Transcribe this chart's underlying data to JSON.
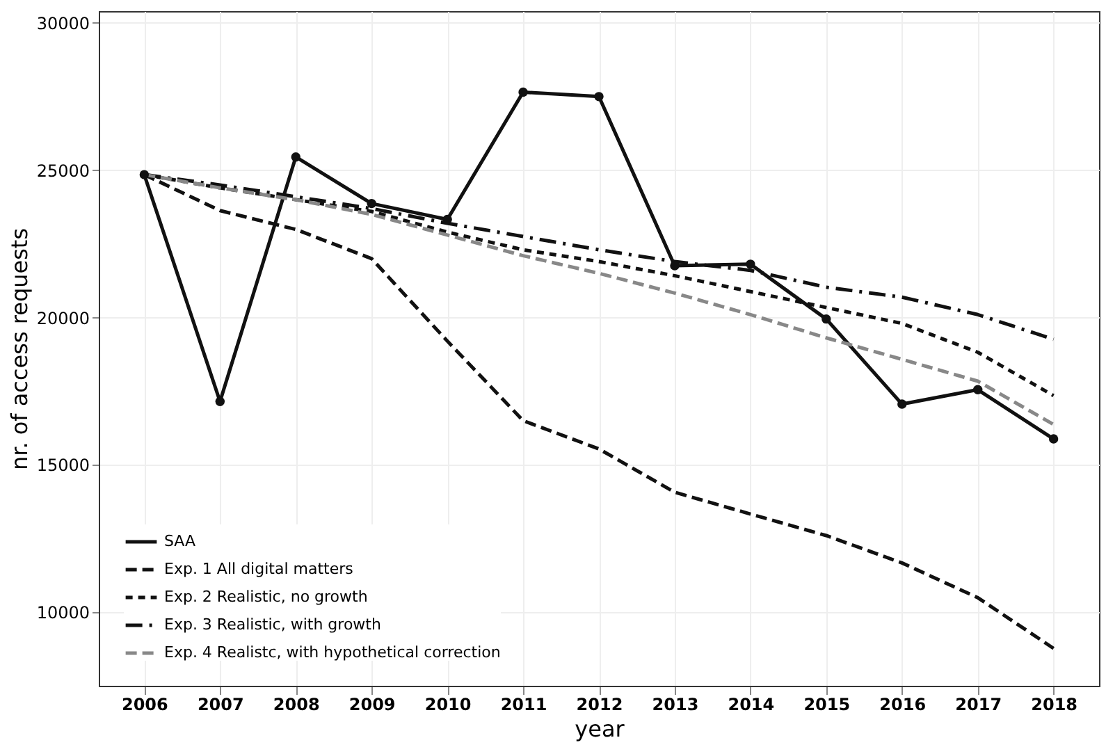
{
  "chart_data": {
    "type": "line",
    "xlabel": "year",
    "ylabel": "nr. of access requests",
    "x": [
      2006,
      2007,
      2008,
      2009,
      2010,
      2011,
      2012,
      2013,
      2014,
      2015,
      2016,
      2017,
      2018
    ],
    "xlim": [
      2005.4,
      2018.6
    ],
    "xticks": [
      2006,
      2007,
      2008,
      2009,
      2010,
      2011,
      2012,
      2013,
      2014,
      2015,
      2016,
      2017,
      2018
    ],
    "ylim": [
      7500,
      30400
    ],
    "yticks": [
      10000,
      15000,
      20000,
      25000,
      30000
    ],
    "grid": true,
    "legend": "bottom left",
    "series": [
      {
        "name": "SAA",
        "color": "#111111",
        "marker": "circle",
        "line_style": "solid",
        "values": [
          24850,
          17150,
          25450,
          23870,
          23330,
          27650,
          27500,
          21760,
          21810,
          19950,
          17060,
          17550,
          15880
        ]
      },
      {
        "name": "Exp. 1 All digital matters",
        "color": "#111111",
        "marker": "none",
        "line_style": "dashed",
        "values": [
          24850,
          23630,
          22990,
          22000,
          19200,
          16500,
          15540,
          14070,
          13330,
          12600,
          11670,
          10490,
          8770
        ]
      },
      {
        "name": "Exp. 2 Realistic, no growth",
        "color": "#111111",
        "marker": "none",
        "line_style": "dotted",
        "values": [
          24850,
          24400,
          24000,
          23600,
          22900,
          22300,
          21900,
          21420,
          20880,
          20340,
          19800,
          18820,
          17350
        ]
      },
      {
        "name": "Exp. 3 Realistic, with growth",
        "color": "#111111",
        "marker": "none",
        "line_style": "dashdot",
        "values": [
          24850,
          24500,
          24100,
          23700,
          23200,
          22750,
          22300,
          21900,
          21600,
          21030,
          20690,
          20100,
          19260
        ]
      },
      {
        "name": "Exp. 4 Realistc, with hypothetical correction",
        "color": "#888888",
        "marker": "none",
        "line_style": "dashed",
        "values": [
          24850,
          24400,
          24000,
          23500,
          22800,
          22100,
          21500,
          20830,
          20100,
          19310,
          18580,
          17840,
          16370
        ]
      }
    ]
  }
}
